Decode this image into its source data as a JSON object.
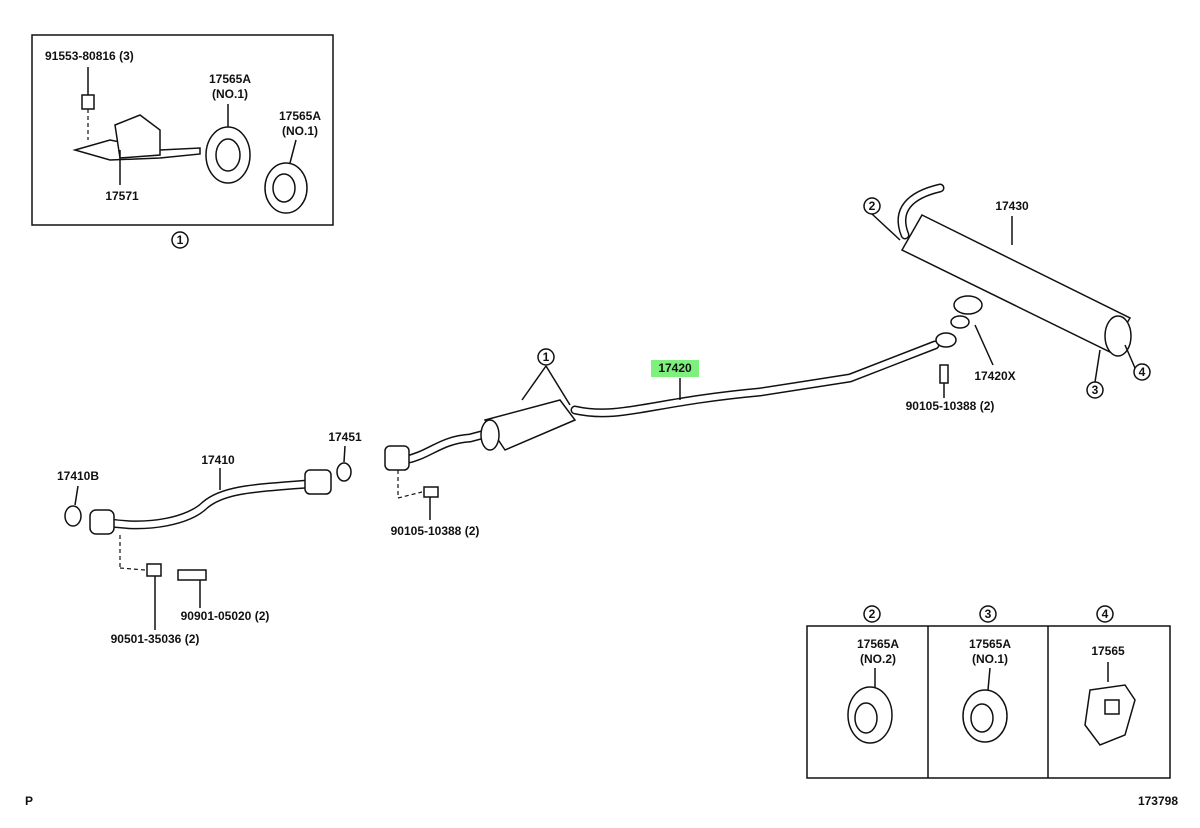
{
  "inset": {
    "callout": "1",
    "labels": [
      "91553-80816 (3)",
      "17565A",
      "(NO.1)",
      "17565A",
      "(NO.1)",
      "17571"
    ]
  },
  "main": {
    "labels": [
      "17430",
      "17420X",
      "90105-10388 (2)",
      "17420",
      "17451",
      "17410",
      "17410B",
      "90105-10388 (2)",
      "90901-05020 (2)",
      "90501-35036 (2)"
    ],
    "callouts": [
      "2",
      "4",
      "3",
      "1"
    ]
  },
  "panels": [
    {
      "callout": "2",
      "part": "17565A",
      "note": "(NO.2)"
    },
    {
      "callout": "3",
      "part": "17565A",
      "note": "(NO.1)"
    },
    {
      "callout": "4",
      "part": "17565"
    }
  ],
  "corner_label": "P",
  "figure_number": "173798"
}
